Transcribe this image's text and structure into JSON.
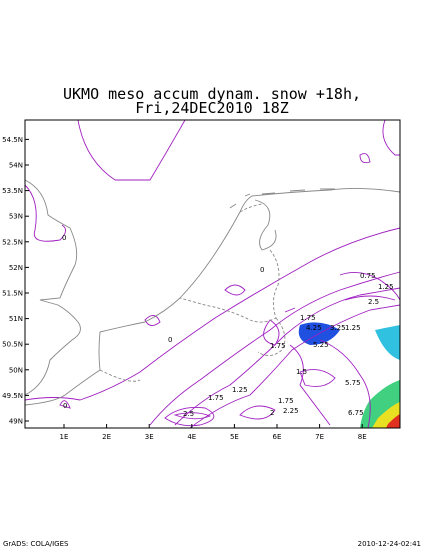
{
  "header": {
    "title_line1": "UKMO meso accum dynam. snow +18h,",
    "title_line2": "Fri,24DEC2010 18Z"
  },
  "map": {
    "lon_labels": [
      {
        "value": 1,
        "label": "1E"
      },
      {
        "value": 2,
        "label": "2E"
      },
      {
        "value": 3,
        "label": "3E"
      },
      {
        "value": 4,
        "label": "4E"
      },
      {
        "value": 5,
        "label": "5E"
      },
      {
        "value": 6,
        "label": "6E"
      },
      {
        "value": 7,
        "label": "7E"
      },
      {
        "value": 8,
        "label": "8E"
      }
    ],
    "lat_labels": [
      {
        "value": 54.5,
        "label": "54.5N"
      },
      {
        "value": 54,
        "label": "54N"
      },
      {
        "value": 53.5,
        "label": "53.5N"
      },
      {
        "value": 53,
        "label": "53N"
      },
      {
        "value": 52.5,
        "label": "52.5N"
      },
      {
        "value": 52,
        "label": "52N"
      },
      {
        "value": 51.5,
        "label": "51.5N"
      },
      {
        "value": 51,
        "label": "51N"
      },
      {
        "value": 50.5,
        "label": "50.5N"
      },
      {
        "value": 50,
        "label": "50N"
      },
      {
        "value": 49.5,
        "label": "49.5N"
      },
      {
        "value": 49,
        "label": "49N"
      }
    ],
    "contour_labels": [
      "0",
      "0",
      "0",
      "0",
      "0.75",
      "1.25",
      "2.5",
      "1.75",
      "4.25",
      "5.25",
      "3.25",
      "1.25",
      "1.75",
      "1.5",
      "1.25",
      "1.75",
      "2.5",
      "2",
      "2.25",
      "1.75",
      "5.75",
      "6.75"
    ]
  },
  "footer": {
    "left": "GrADS: COLA/IGES",
    "right": "2010-12-24-02:41"
  }
}
